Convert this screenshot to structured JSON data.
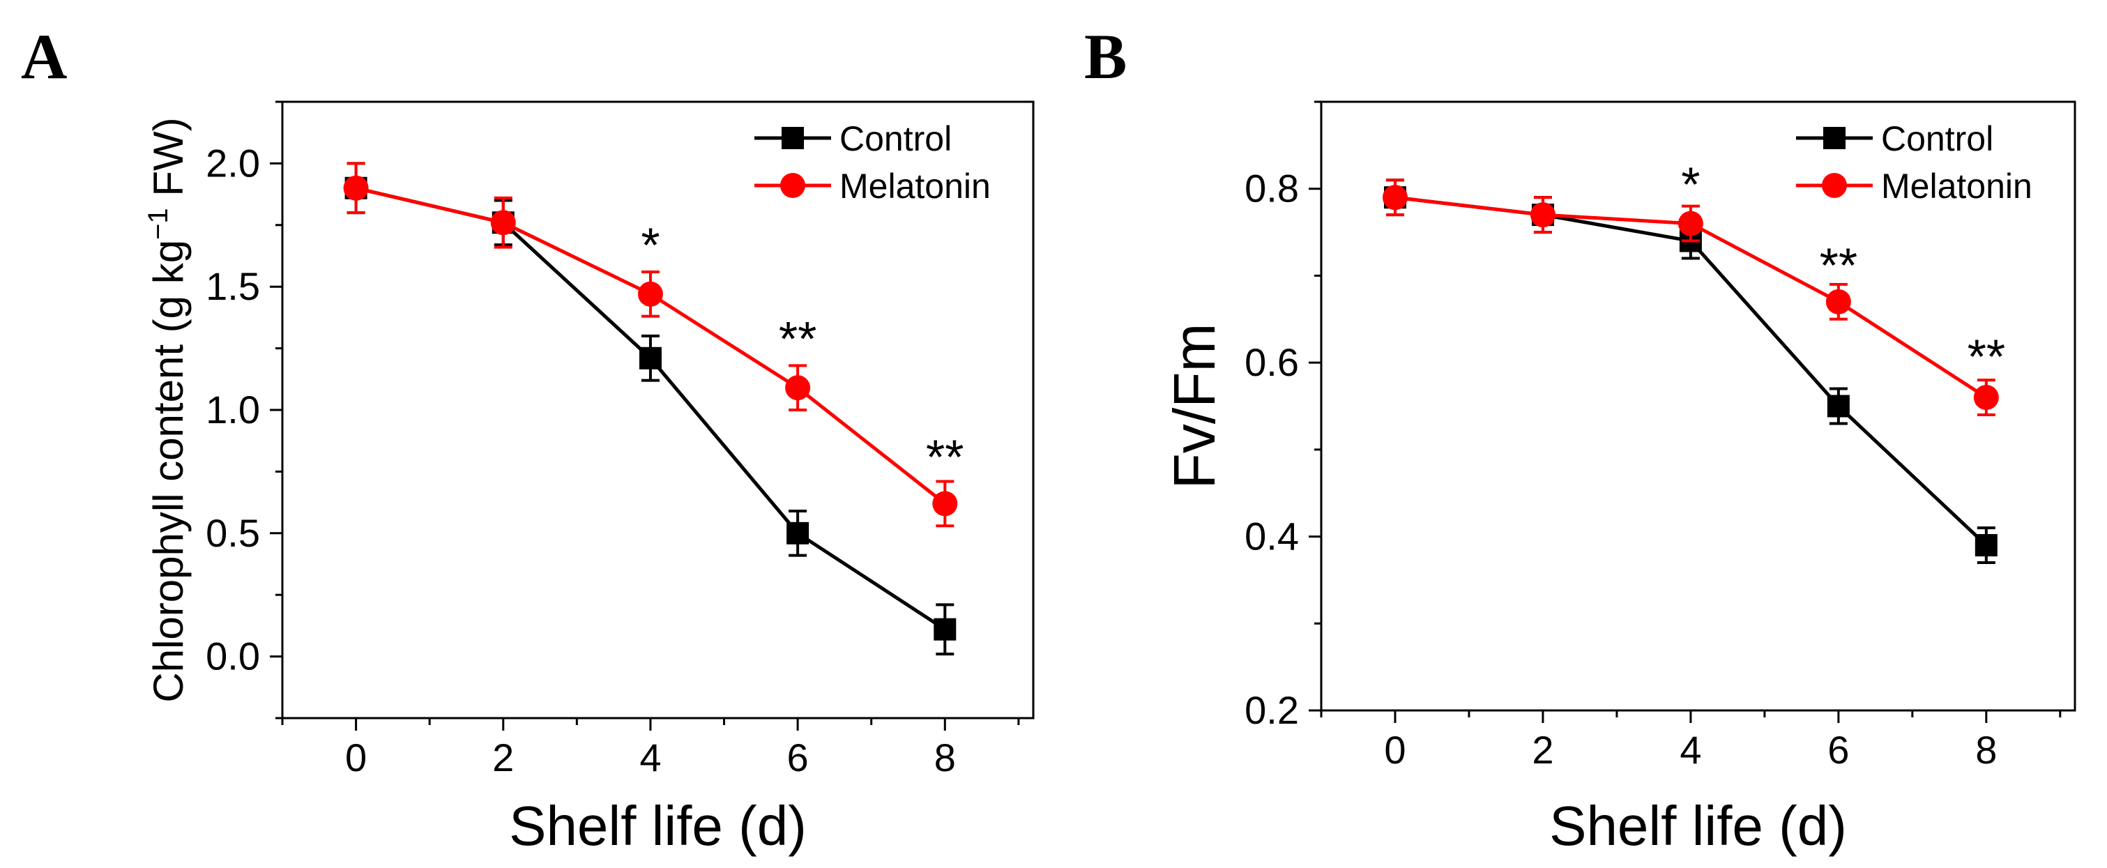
{
  "figure": {
    "background": "#ffffff",
    "series_colors": {
      "Control": "#000000",
      "Melatonin": "#ff0000"
    }
  },
  "chart_data": [
    {
      "panel": "A",
      "type": "line",
      "xlabel": "Shelf life (d)",
      "ylabel": "Chlorophyll content (g kg⁻¹ FW)",
      "ylabel_parts": {
        "before": "Chlorophyll content (g kg",
        "sup": "−1",
        "after": " FW)"
      },
      "xlim": [
        -1,
        9.2
      ],
      "ylim": [
        -0.25,
        2.25
      ],
      "xticks": [
        0,
        2,
        4,
        6,
        8
      ],
      "xtick_labels": [
        "0",
        "2",
        "4",
        "6",
        "8"
      ],
      "yticks": [
        0,
        0.5,
        1,
        1.5,
        2
      ],
      "ytick_labels": [
        "0.0",
        "0.5",
        "1.0",
        "1.5",
        "2.0"
      ],
      "legend": "top-right",
      "series": [
        {
          "name": "Control",
          "color": "#000000",
          "marker": "square",
          "x": [
            0,
            2,
            4,
            6,
            8
          ],
          "y": [
            1.9,
            1.76,
            1.21,
            0.5,
            0.11
          ],
          "err": [
            0.1,
            0.09,
            0.09,
            0.09,
            0.1
          ]
        },
        {
          "name": "Melatonin",
          "color": "#ff0000",
          "marker": "circle",
          "x": [
            0,
            2,
            4,
            6,
            8
          ],
          "y": [
            1.9,
            1.76,
            1.47,
            1.09,
            0.62
          ],
          "err": [
            0.1,
            0.1,
            0.09,
            0.09,
            0.09
          ]
        }
      ],
      "annotations": [
        {
          "text": "*",
          "x": 4,
          "y": 1.68
        },
        {
          "text": "**",
          "x": 6,
          "y": 1.3
        },
        {
          "text": "**",
          "x": 8,
          "y": 0.82
        }
      ]
    },
    {
      "panel": "B",
      "type": "line",
      "xlabel": "Shelf life (d)",
      "ylabel": "Fv/Fm",
      "xlim": [
        -1,
        9.2
      ],
      "ylim": [
        0.2,
        0.9
      ],
      "xticks": [
        0,
        2,
        4,
        6,
        8
      ],
      "xtick_labels": [
        "0",
        "2",
        "4",
        "6",
        "8"
      ],
      "yticks": [
        0.2,
        0.4,
        0.6,
        0.8
      ],
      "ytick_labels": [
        "0.2",
        "0.4",
        "0.6",
        "0.8"
      ],
      "legend": "top-right",
      "series": [
        {
          "name": "Control",
          "color": "#000000",
          "marker": "square",
          "x": [
            0,
            2,
            4,
            6,
            8
          ],
          "y": [
            0.79,
            0.77,
            0.74,
            0.55,
            0.39
          ],
          "err": [
            0.02,
            0.02,
            0.02,
            0.02,
            0.02
          ]
        },
        {
          "name": "Melatonin",
          "color": "#ff0000",
          "marker": "circle",
          "x": [
            0,
            2,
            4,
            6,
            8
          ],
          "y": [
            0.79,
            0.77,
            0.76,
            0.67,
            0.56
          ],
          "err": [
            0.02,
            0.02,
            0.02,
            0.02,
            0.02
          ]
        }
      ],
      "annotations": [
        {
          "text": "*",
          "x": 4,
          "y": 0.808
        },
        {
          "text": "**",
          "x": 6,
          "y": 0.715
        },
        {
          "text": "**",
          "x": 8,
          "y": 0.61
        }
      ]
    }
  ]
}
